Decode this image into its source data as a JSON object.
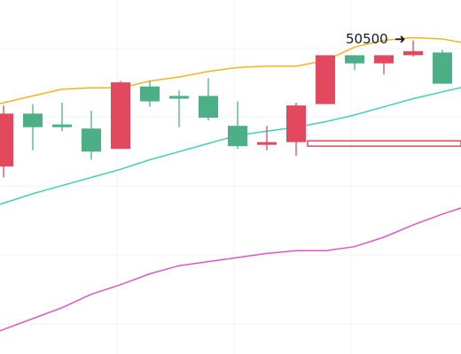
{
  "chart_data": {
    "type": "candlestick",
    "title": "",
    "xlabel": "",
    "ylabel": "",
    "grid": true,
    "colors": {
      "up": "#4caf87",
      "down": "#e2495e",
      "upper_band": "#f5b225",
      "middle_line": "#3fd1b6",
      "lower_line": "#e056c5",
      "grid": "#f0f3fa",
      "background": "#ffffff"
    },
    "candles": [
      {
        "index": 0,
        "open": 49950,
        "high": 50010,
        "low": 49480,
        "close": 49560
      },
      {
        "index": 1,
        "open": 49850,
        "high": 50020,
        "low": 49680,
        "close": 49950
      },
      {
        "index": 2,
        "open": 49850,
        "high": 50030,
        "low": 49820,
        "close": 49870
      },
      {
        "index": 3,
        "open": 49670,
        "high": 49970,
        "low": 49610,
        "close": 49840
      },
      {
        "index": 4,
        "open": 50180,
        "high": 50190,
        "low": 49690,
        "close": 49690
      },
      {
        "index": 5,
        "open": 50040,
        "high": 50190,
        "low": 50000,
        "close": 50150
      },
      {
        "index": 6,
        "open": 50060,
        "high": 50120,
        "low": 49850,
        "close": 50080
      },
      {
        "index": 7,
        "open": 49920,
        "high": 50210,
        "low": 49900,
        "close": 50080
      },
      {
        "index": 8,
        "open": 49710,
        "high": 50040,
        "low": 49690,
        "close": 49860
      },
      {
        "index": 9,
        "open": 49740,
        "high": 49860,
        "low": 49680,
        "close": 49720
      },
      {
        "index": 10,
        "open": 50010,
        "high": 50030,
        "low": 49640,
        "close": 49740
      },
      {
        "index": 11,
        "open": 50380,
        "high": 50380,
        "low": 50020,
        "close": 50020
      },
      {
        "index": 12,
        "open": 50320,
        "high": 50380,
        "low": 50270,
        "close": 50380
      },
      {
        "index": 13,
        "open": 50380,
        "high": 50380,
        "low": 50240,
        "close": 50320
      },
      {
        "index": 14,
        "open": 50410,
        "high": 50490,
        "low": 50370,
        "close": 50380
      },
      {
        "index": 15,
        "open": 50170,
        "high": 50420,
        "low": 50170,
        "close": 50400
      },
      {
        "index": 16,
        "open": 50160,
        "high": 50180,
        "low": 50130,
        "close": 50150
      }
    ],
    "upper_band": [
      50030,
      50080,
      50130,
      50140,
      50140,
      50190,
      50220,
      50260,
      50290,
      50300,
      50300,
      50340,
      50440,
      50490,
      50510,
      50500,
      50460
    ],
    "middle_line": [
      49290,
      49360,
      49420,
      49480,
      49540,
      49610,
      49670,
      49730,
      49790,
      49820,
      49850,
      49890,
      49940,
      50000,
      50060,
      50110,
      50160
    ],
    "lower_line": [
      48360,
      48440,
      48520,
      48620,
      48690,
      48770,
      48830,
      48860,
      48890,
      48920,
      48940,
      48940,
      48970,
      49040,
      49130,
      49210,
      49280
    ],
    "horizontal_marker": {
      "value": 49730
    },
    "annotation": {
      "text": "50500",
      "arrow": "➜",
      "price": 50500
    }
  }
}
